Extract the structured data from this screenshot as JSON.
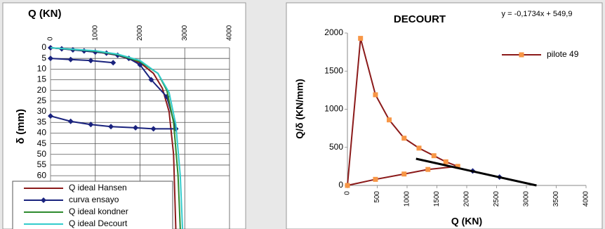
{
  "chart_data": [
    {
      "type": "line",
      "title": "Q (KN)",
      "y_label": "δ (mm)",
      "xaxis_position": "top",
      "y_inverted": true,
      "xlim": [
        0,
        4000
      ],
      "xticks": [
        0,
        1000,
        2000,
        3000,
        4000
      ],
      "ylim": [
        0,
        85
      ],
      "yticks": [
        0,
        5,
        10,
        15,
        20,
        25,
        30,
        35,
        40,
        45,
        50,
        55,
        60
      ],
      "grid": true,
      "legend": "bottom-left",
      "series": [
        {
          "name": "Q ideal Hansen",
          "color": "#8b1a1a",
          "x": [
            0,
            1000,
            1500,
            2000,
            2300,
            2500,
            2650,
            2750,
            2800
          ],
          "values": [
            0,
            1.8,
            3.5,
            7,
            12,
            19,
            30,
            50,
            85
          ]
        },
        {
          "name": "curva ensayo",
          "color": "#1a237e",
          "marker": "diamond",
          "x": [
            0,
            250,
            500,
            750,
            1000,
            1250,
            1500,
            1750,
            2000,
            2250,
            2600,
            2800,
            2300,
            1900,
            1350,
            900,
            450,
            0,
            null,
            0,
            450,
            900,
            1400
          ],
          "values": [
            0,
            0.5,
            1,
            1.5,
            2,
            2.5,
            3.5,
            5,
            8,
            15,
            23,
            38,
            38,
            37.5,
            37,
            36,
            34.5,
            32,
            null,
            5,
            5.5,
            6,
            7
          ]
        },
        {
          "name": "Q ideal kondner",
          "color": "#2e8b2e",
          "x": [
            0,
            1000,
            1500,
            2000,
            2400,
            2600,
            2750,
            2850,
            2900
          ],
          "values": [
            0,
            1.6,
            3.2,
            6.5,
            12,
            20,
            35,
            60,
            85
          ]
        },
        {
          "name": "Q ideal Decourt",
          "color": "#33cccc",
          "x": [
            0,
            1000,
            1500,
            2000,
            2400,
            2650,
            2800,
            2900,
            2950
          ],
          "values": [
            0,
            1.4,
            3,
            6,
            12,
            21,
            36,
            60,
            85
          ]
        }
      ]
    },
    {
      "type": "line",
      "title": "DECOURT",
      "annotation": "y = -0,1734x + 549,9",
      "x_label": "Q (KN)",
      "y_label": "Q/δ (KN/mm)",
      "xaxis_position": "bottom",
      "xlim": [
        0,
        4000
      ],
      "xticks": [
        0,
        500,
        1000,
        1500,
        2000,
        2500,
        3000,
        3500,
        4000
      ],
      "ylim": [
        0,
        2000
      ],
      "yticks": [
        0,
        500,
        1000,
        1500,
        2000
      ],
      "grid": false,
      "legend": "top-right",
      "series": [
        {
          "name": "pilote 49",
          "color": "#8b1a1a",
          "marker": "square",
          "marker_color": "#f79646",
          "x": [
            0,
            220,
            470,
            700,
            950,
            1200,
            1450,
            1650,
            1850,
            1350,
            950,
            470,
            0
          ],
          "values": [
            0,
            1930,
            1190,
            860,
            620,
            490,
            390,
            310,
            250,
            210,
            150,
            80,
            0
          ]
        },
        {
          "color": "#1a237e",
          "marker": "diamond",
          "line": false,
          "x": [
            2100,
            2550
          ],
          "values": [
            190,
            110
          ]
        },
        {
          "color": "#000000",
          "width": 3,
          "x": [
            1150,
            3170
          ],
          "values": [
            350,
            0
          ]
        }
      ]
    }
  ]
}
